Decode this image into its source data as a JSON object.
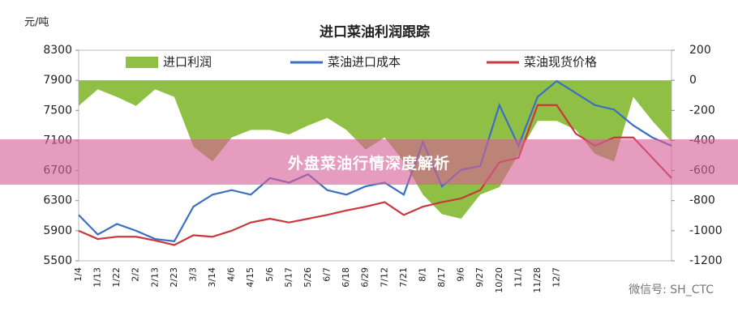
{
  "chart_data": {
    "type": "line",
    "title": "进口菜油利润跟踪",
    "y_label": "元/吨",
    "categories": [
      "1/4",
      "1/13",
      "1/22",
      "2/2",
      "2/13",
      "2/23",
      "3/3",
      "3/14",
      "4/6",
      "4/15",
      "5/6",
      "5/17",
      "5/26",
      "6/7",
      "6/18",
      "6/29",
      "7/12",
      "7/21",
      "8/1",
      "8/17",
      "9/6",
      "9/27",
      "10/20",
      "11/1",
      "11/28",
      "12/7",
      null,
      null,
      null,
      null,
      null,
      null
    ],
    "series": [
      {
        "name": "进口利润",
        "type": "area",
        "axis": "y2",
        "color": "#8fbf45",
        "values": [
          -170,
          -60,
          -110,
          -170,
          -60,
          -110,
          -440,
          -540,
          -380,
          -330,
          -330,
          -360,
          -300,
          -250,
          -330,
          -460,
          -380,
          -540,
          -760,
          -890,
          -920,
          -760,
          -710,
          -490,
          -270,
          -270,
          -330,
          -490,
          -540,
          -110,
          -270,
          -410
        ]
      },
      {
        "name": "菜油进口成本",
        "type": "line",
        "color": "#3a6fc4",
        "values": [
          6110,
          5850,
          5990,
          5900,
          5790,
          5760,
          6220,
          6380,
          6440,
          6380,
          6600,
          6540,
          6650,
          6440,
          6380,
          6490,
          6540,
          6380,
          7080,
          6490,
          6710,
          6760,
          7570,
          7030,
          7680,
          7890,
          7730,
          7570,
          7510,
          7300,
          7140,
          7030
        ]
      },
      {
        "name": "菜油现货价格",
        "type": "line",
        "color": "#c8383c",
        "values": [
          5900,
          5790,
          5820,
          5820,
          5770,
          5710,
          5840,
          5820,
          5900,
          6010,
          6060,
          6010,
          6060,
          6110,
          6170,
          6220,
          6280,
          6110,
          6220,
          6280,
          6330,
          6440,
          6810,
          6870,
          7570,
          7570,
          7190,
          7030,
          7140,
          7140,
          6870,
          6600
        ]
      }
    ],
    "ylim": [
      5500,
      8300
    ],
    "yticks": [
      5500,
      5900,
      6300,
      6700,
      7100,
      7500,
      7900,
      8300
    ],
    "y2lim": [
      -1200,
      200
    ],
    "y2ticks": [
      -1200,
      -1000,
      -800,
      -600,
      -400,
      -200,
      0,
      200
    ],
    "legend": "top",
    "grid": false
  },
  "overlay": {
    "banner": "外盘菜油行情深度解析",
    "watermark": "微信号: SH_CTC"
  }
}
